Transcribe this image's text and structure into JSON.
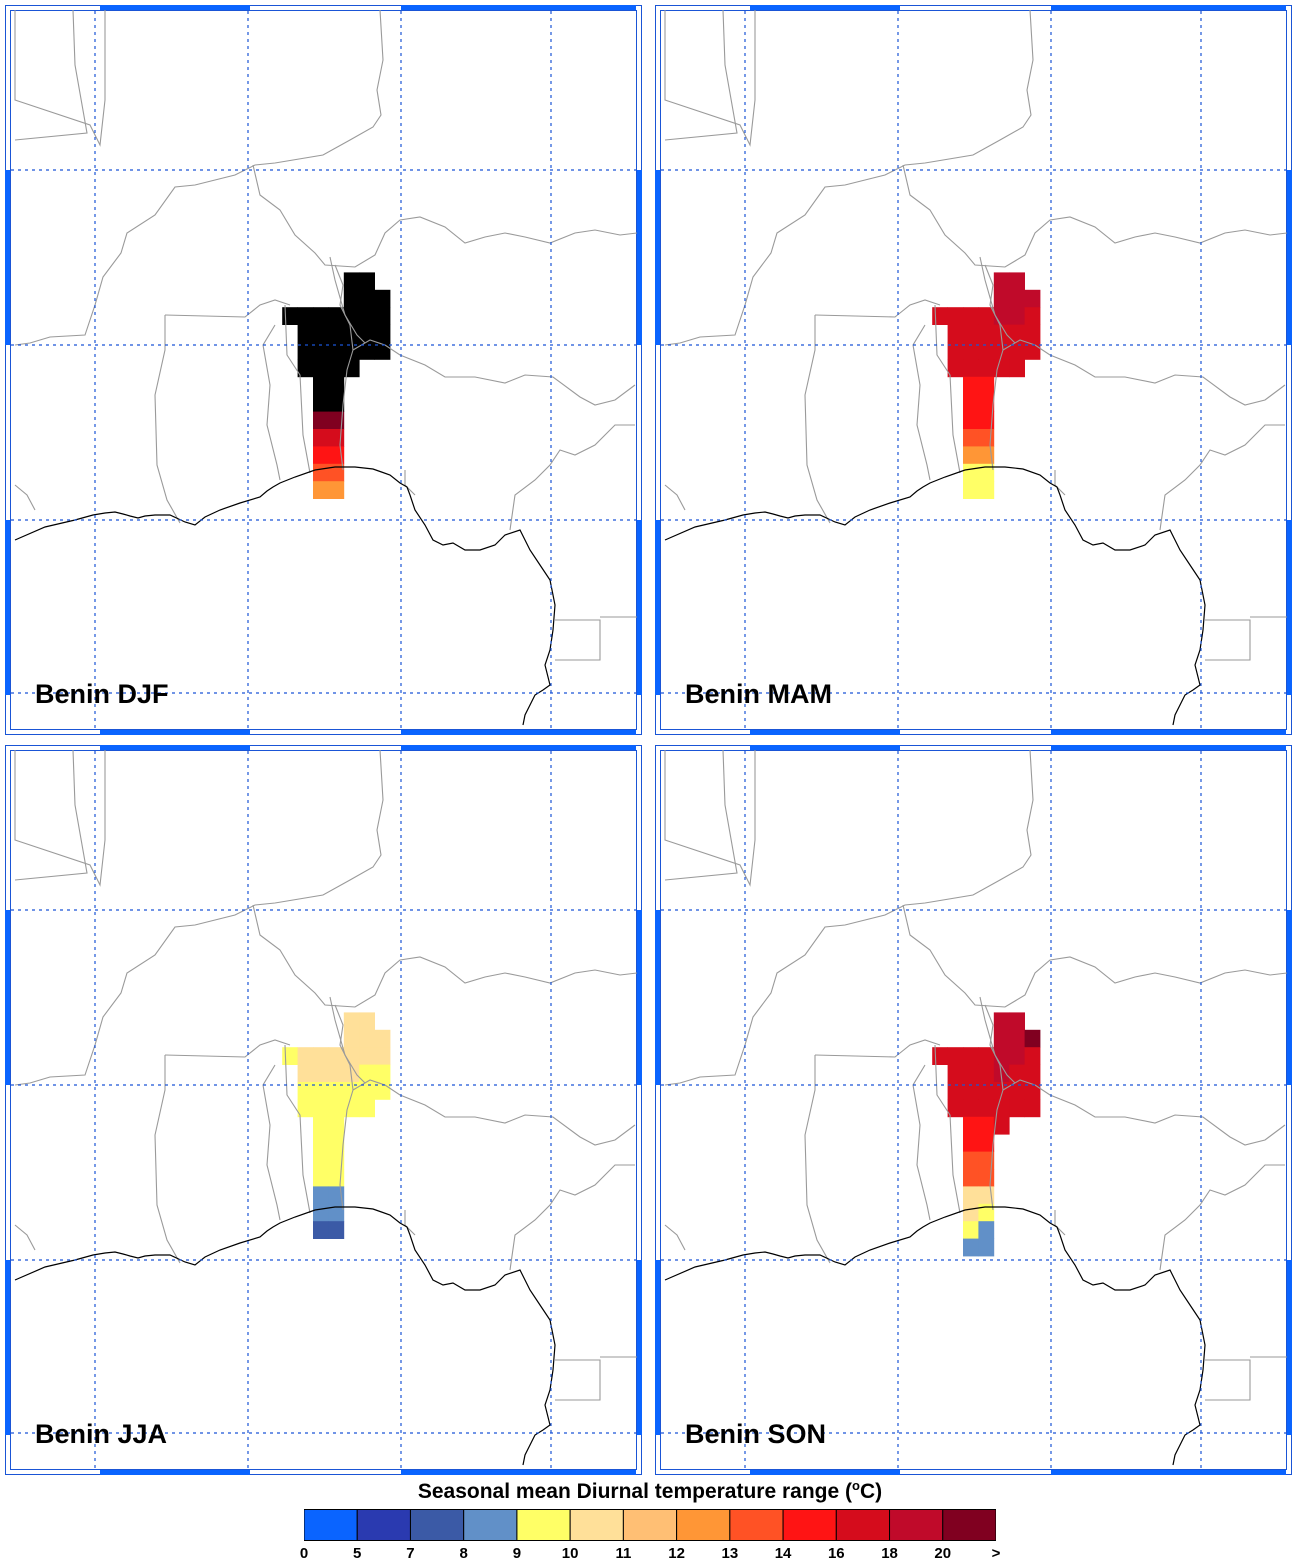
{
  "panels": [
    {
      "title": "Benin DJF",
      "cells": [
        [
          22,
          1,
          14
        ],
        [
          23,
          1,
          14
        ],
        [
          22,
          2,
          14
        ],
        [
          23,
          2,
          14
        ],
        [
          24,
          2,
          14
        ],
        [
          18,
          3,
          14
        ],
        [
          19,
          3,
          14
        ],
        [
          20,
          3,
          14
        ],
        [
          21,
          3,
          14
        ],
        [
          22,
          3,
          14
        ],
        [
          23,
          3,
          14
        ],
        [
          24,
          3,
          14
        ],
        [
          19,
          4,
          13
        ],
        [
          20,
          4,
          13
        ],
        [
          21,
          4,
          14
        ],
        [
          22,
          4,
          14
        ],
        [
          23,
          4,
          14
        ],
        [
          24,
          4,
          14
        ],
        [
          19,
          5,
          13
        ],
        [
          20,
          5,
          13
        ],
        [
          21,
          5,
          13
        ],
        [
          22,
          5,
          14
        ],
        [
          23,
          5,
          14
        ],
        [
          24,
          5,
          14
        ],
        [
          19,
          6,
          13
        ],
        [
          20,
          6,
          13
        ],
        [
          21,
          6,
          13
        ],
        [
          22,
          6,
          13
        ],
        [
          20,
          7,
          13
        ],
        [
          21,
          7,
          13
        ],
        [
          20,
          8,
          13
        ],
        [
          21,
          8,
          13
        ],
        [
          20,
          9,
          12
        ],
        [
          21,
          9,
          12
        ],
        [
          20,
          10,
          10
        ],
        [
          21,
          10,
          10
        ],
        [
          20,
          11,
          9
        ],
        [
          21,
          11,
          9
        ],
        [
          20,
          12,
          8
        ],
        [
          21,
          12,
          8
        ],
        [
          20,
          13,
          7
        ],
        [
          21,
          13,
          7
        ]
      ]
    },
    {
      "title": "Benin MAM",
      "cells": [
        [
          22,
          1,
          11
        ],
        [
          23,
          1,
          11
        ],
        [
          22,
          2,
          11
        ],
        [
          23,
          2,
          11
        ],
        [
          24,
          2,
          11
        ],
        [
          18,
          3,
          10
        ],
        [
          19,
          3,
          10
        ],
        [
          20,
          3,
          10
        ],
        [
          21,
          3,
          10
        ],
        [
          22,
          3,
          11
        ],
        [
          23,
          3,
          11
        ],
        [
          24,
          3,
          10
        ],
        [
          19,
          4,
          10
        ],
        [
          20,
          4,
          10
        ],
        [
          21,
          4,
          10
        ],
        [
          22,
          4,
          10
        ],
        [
          23,
          4,
          10
        ],
        [
          24,
          4,
          10
        ],
        [
          19,
          5,
          10
        ],
        [
          20,
          5,
          10
        ],
        [
          21,
          5,
          10
        ],
        [
          22,
          5,
          10
        ],
        [
          23,
          5,
          10
        ],
        [
          24,
          5,
          10
        ],
        [
          19,
          6,
          10
        ],
        [
          20,
          6,
          10
        ],
        [
          21,
          6,
          10
        ],
        [
          22,
          6,
          10
        ],
        [
          23,
          6,
          10
        ],
        [
          20,
          7,
          9
        ],
        [
          21,
          7,
          9
        ],
        [
          20,
          8,
          9
        ],
        [
          21,
          8,
          9
        ],
        [
          20,
          9,
          9
        ],
        [
          21,
          9,
          9
        ],
        [
          20,
          10,
          8
        ],
        [
          21,
          10,
          8
        ],
        [
          20,
          11,
          7
        ],
        [
          21,
          11,
          7
        ],
        [
          20,
          12,
          4
        ],
        [
          21,
          12,
          4
        ],
        [
          20,
          13,
          4
        ],
        [
          21,
          13,
          4
        ]
      ]
    },
    {
      "title": "Benin JJA",
      "cells": [
        [
          22,
          1,
          5
        ],
        [
          23,
          1,
          5
        ],
        [
          22,
          2,
          5
        ],
        [
          23,
          2,
          5
        ],
        [
          24,
          2,
          5
        ],
        [
          18,
          3,
          4
        ],
        [
          19,
          3,
          5
        ],
        [
          20,
          3,
          5
        ],
        [
          21,
          3,
          5
        ],
        [
          22,
          3,
          5
        ],
        [
          23,
          3,
          5
        ],
        [
          24,
          3,
          5
        ],
        [
          19,
          4,
          5
        ],
        [
          20,
          4,
          5
        ],
        [
          21,
          4,
          5
        ],
        [
          22,
          4,
          5
        ],
        [
          23,
          4,
          4
        ],
        [
          24,
          4,
          4
        ],
        [
          19,
          5,
          4
        ],
        [
          20,
          5,
          4
        ],
        [
          21,
          5,
          4
        ],
        [
          22,
          5,
          4
        ],
        [
          23,
          5,
          4
        ],
        [
          24,
          5,
          4
        ],
        [
          19,
          6,
          4
        ],
        [
          20,
          6,
          4
        ],
        [
          21,
          6,
          4
        ],
        [
          22,
          6,
          4
        ],
        [
          23,
          6,
          4
        ],
        [
          20,
          7,
          4
        ],
        [
          21,
          7,
          4
        ],
        [
          20,
          8,
          4
        ],
        [
          21,
          8,
          4
        ],
        [
          20,
          9,
          4
        ],
        [
          21,
          9,
          4
        ],
        [
          20,
          10,
          4
        ],
        [
          21,
          10,
          4
        ],
        [
          20,
          11,
          3
        ],
        [
          21,
          11,
          3
        ],
        [
          20,
          12,
          3
        ],
        [
          21,
          12,
          3
        ],
        [
          20,
          13,
          2
        ],
        [
          21,
          13,
          2
        ]
      ]
    },
    {
      "title": "Benin SON",
      "cells": [
        [
          22,
          1,
          11
        ],
        [
          23,
          1,
          11
        ],
        [
          22,
          2,
          11
        ],
        [
          23,
          2,
          11
        ],
        [
          24,
          2,
          12
        ],
        [
          18,
          3,
          10
        ],
        [
          19,
          3,
          10
        ],
        [
          20,
          3,
          10
        ],
        [
          21,
          3,
          10
        ],
        [
          22,
          3,
          11
        ],
        [
          23,
          3,
          11
        ],
        [
          24,
          3,
          10
        ],
        [
          19,
          4,
          10
        ],
        [
          20,
          4,
          10
        ],
        [
          21,
          4,
          10
        ],
        [
          22,
          4,
          11
        ],
        [
          23,
          4,
          10
        ],
        [
          24,
          4,
          10
        ],
        [
          19,
          5,
          10
        ],
        [
          20,
          5,
          10
        ],
        [
          21,
          5,
          10
        ],
        [
          22,
          5,
          10
        ],
        [
          23,
          5,
          10
        ],
        [
          24,
          5,
          10
        ],
        [
          19,
          6,
          10
        ],
        [
          20,
          6,
          10
        ],
        [
          21,
          6,
          10
        ],
        [
          22,
          6,
          10
        ],
        [
          23,
          6,
          10
        ],
        [
          24,
          6,
          10
        ],
        [
          20,
          7,
          9
        ],
        [
          21,
          7,
          9
        ],
        [
          22,
          7,
          10
        ],
        [
          20,
          8,
          9
        ],
        [
          21,
          8,
          9
        ],
        [
          20,
          9,
          8
        ],
        [
          21,
          9,
          8
        ],
        [
          20,
          10,
          8
        ],
        [
          21,
          10,
          8
        ],
        [
          20,
          11,
          5
        ],
        [
          21,
          11,
          5
        ],
        [
          20,
          12,
          5
        ],
        [
          21,
          12,
          4
        ],
        [
          20,
          13,
          4
        ],
        [
          21,
          13,
          3
        ],
        [
          20,
          14,
          3
        ],
        [
          21,
          14,
          3
        ]
      ]
    }
  ],
  "legend": {
    "title_pre": "Seasonal mean Diurnal temperature range (",
    "title_sup": "o",
    "title_post": "C)",
    "labels": [
      "0",
      "5",
      "7",
      "8",
      "9",
      "10",
      "11",
      "12",
      "13",
      "14",
      "16",
      "18",
      "20",
      ">"
    ],
    "colors": [
      "#0a64ff",
      "#2a3ab0",
      "#3b5aa6",
      "#6190c8",
      "#ffff66",
      "#ffe099",
      "#ffbf74",
      "#ff9636",
      "#ff5225",
      "#ff1414",
      "#d50c1c",
      "#c00a2a",
      "#800020"
    ]
  }
}
